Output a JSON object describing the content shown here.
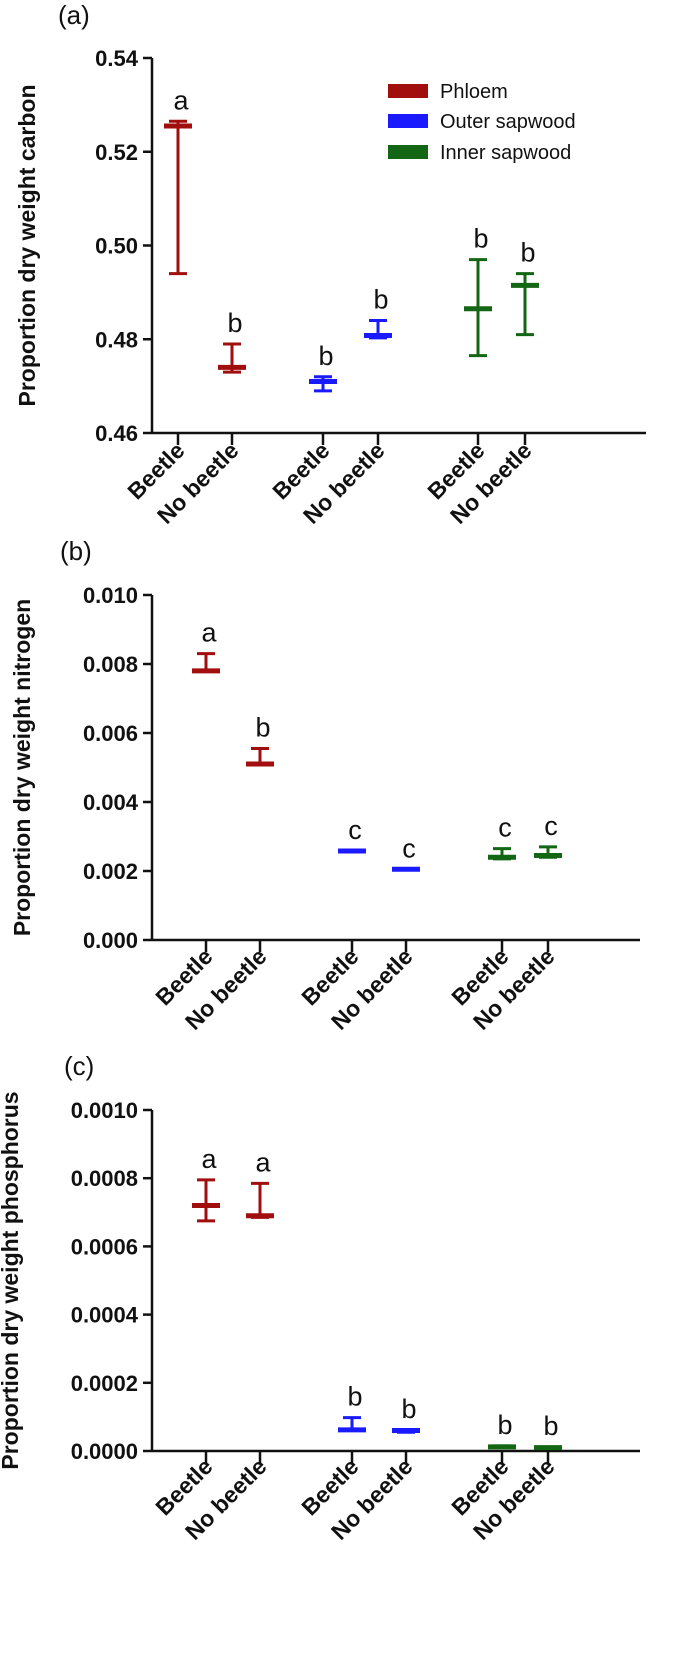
{
  "colors": {
    "phloem": "#a10e0e",
    "outer_sapwood": "#1a1aff",
    "inner_sapwood": "#136613",
    "axis": "#111111"
  },
  "legend": [
    {
      "name": "Phloem",
      "color": "#a10e0e"
    },
    {
      "name": "Outer sapwood",
      "color": "#1a1aff"
    },
    {
      "name": "Inner sapwood",
      "color": "#136613"
    }
  ],
  "chart_data": [
    {
      "type": "scatter",
      "panel": "(a)",
      "ylabel": "Proportion dry weight carbon",
      "xlabel": "",
      "ylim": [
        0.46,
        0.54
      ],
      "yticks": [
        "0.46",
        "0.48",
        "0.50",
        "0.52",
        "0.54"
      ],
      "legend_position": "top-right",
      "categories": [
        "Beetle",
        "No beetle",
        "Beetle",
        "No beetle",
        "Beetle",
        "No beetle"
      ],
      "groups": [
        "Phloem",
        "Phloem",
        "Outer sapwood",
        "Outer sapwood",
        "Inner sapwood",
        "Inner sapwood"
      ],
      "median": [
        0.5255,
        0.474,
        0.471,
        0.4808,
        0.4865,
        0.4915
      ],
      "lower": [
        0.494,
        0.473,
        0.469,
        0.4803,
        0.4765,
        0.481
      ],
      "upper": [
        0.5265,
        0.479,
        0.472,
        0.484,
        0.497,
        0.494
      ],
      "letters": [
        "a",
        "b",
        "b",
        "b",
        "b",
        "b"
      ]
    },
    {
      "type": "scatter",
      "panel": "(b)",
      "ylabel": "Proportion dry weight nitrogen",
      "xlabel": "",
      "ylim": [
        0,
        0.01
      ],
      "yticks": [
        "0.000",
        "0.002",
        "0.004",
        "0.006",
        "0.008",
        "0.010"
      ],
      "categories": [
        "Beetle",
        "No beetle",
        "Beetle",
        "No beetle",
        "Beetle",
        "No beetle"
      ],
      "groups": [
        "Phloem",
        "Phloem",
        "Outer sapwood",
        "Outer sapwood",
        "Inner sapwood",
        "Inner sapwood"
      ],
      "median": [
        0.0078,
        0.0051,
        0.00258,
        0.00205,
        0.0024,
        0.00245
      ],
      "lower": [
        0.0078,
        0.0051,
        0.00258,
        0.00205,
        0.00235,
        0.0024
      ],
      "upper": [
        0.0083,
        0.00555,
        0.00258,
        0.00205,
        0.00265,
        0.0027
      ],
      "letters": [
        "a",
        "b",
        "c",
        "c",
        "c",
        "c"
      ]
    },
    {
      "type": "scatter",
      "panel": "(c)",
      "ylabel": "Proportion dry weight phosphorus",
      "xlabel": "",
      "ylim": [
        0,
        0.001
      ],
      "yticks": [
        "0.0000",
        "0.0002",
        "0.0004",
        "0.0006",
        "0.0008",
        "0.0010"
      ],
      "categories": [
        "Beetle",
        "No beetle",
        "Beetle",
        "No beetle",
        "Beetle",
        "No beetle"
      ],
      "groups": [
        "Phloem",
        "Phloem",
        "Outer sapwood",
        "Outer sapwood",
        "Inner sapwood",
        "Inner sapwood"
      ],
      "median": [
        0.00072,
        0.00069,
        6.2e-05,
        6e-05,
        1.2e-05,
        1e-05
      ],
      "lower": [
        0.000675,
        0.000685,
        6.2e-05,
        5.5e-05,
        1.2e-05,
        1e-05
      ],
      "upper": [
        0.000795,
        0.000785,
        9.8e-05,
        6.2e-05,
        1.5e-05,
        1.2e-05
      ],
      "letters": [
        "a",
        "a",
        "b",
        "b",
        "b",
        "b"
      ]
    }
  ]
}
